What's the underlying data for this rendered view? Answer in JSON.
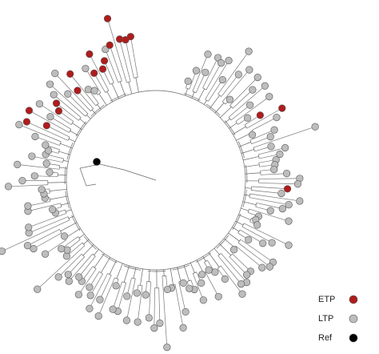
{
  "legend": [
    {
      "label": "ETP",
      "color": "#b01c1c"
    },
    {
      "label": "LTP",
      "color": "#bdbdbd"
    },
    {
      "label": "Ref",
      "color": "#000000"
    }
  ]
}
